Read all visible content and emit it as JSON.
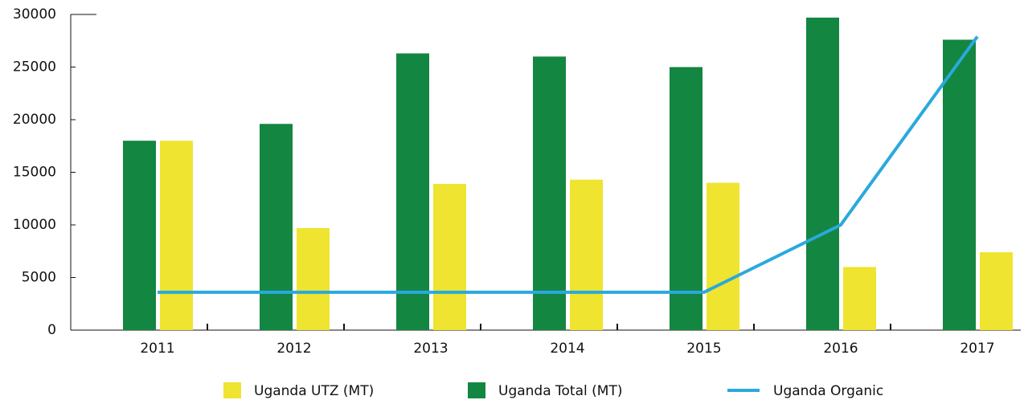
{
  "chart_data": {
    "type": "bar",
    "categories": [
      "2011",
      "2012",
      "2013",
      "2014",
      "2015",
      "2016",
      "2017"
    ],
    "series": [
      {
        "name": "Uganda UTZ (MT)",
        "type": "bar",
        "color": "#efe42f",
        "values": [
          18000,
          9700,
          13900,
          14300,
          14000,
          6000,
          7400
        ]
      },
      {
        "name": "Uganda Total (MT)",
        "type": "bar",
        "color": "#138641",
        "values": [
          18000,
          19600,
          26300,
          26000,
          25000,
          29700,
          27600
        ]
      },
      {
        "name": "Uganda Organic",
        "type": "line",
        "color": "#2aa9dd",
        "values": [
          3600,
          3600,
          3600,
          3600,
          3600,
          10000,
          27900
        ]
      }
    ],
    "ylim": [
      0,
      30000
    ],
    "yticks": [
      0,
      5000,
      10000,
      15000,
      20000,
      25000,
      30000
    ],
    "legend": "bottom"
  }
}
